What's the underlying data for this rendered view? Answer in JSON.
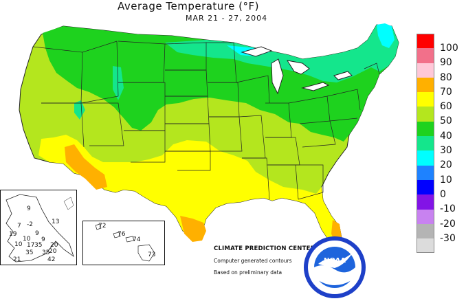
{
  "title": "Average Temperature (°F)",
  "subtitle": "MAR 21 - 27, 2004",
  "legend": [
    {
      "label": "100",
      "color": "#ff0000"
    },
    {
      "label": "90",
      "color": "#f2708a"
    },
    {
      "label": "80",
      "color": "#ffc8d8"
    },
    {
      "label": "70",
      "color": "#ffb000"
    },
    {
      "label": "60",
      "color": "#ffff00"
    },
    {
      "label": "50",
      "color": "#b4e61e"
    },
    {
      "label": "40",
      "color": "#1ed21e"
    },
    {
      "label": "30",
      "color": "#14e68c"
    },
    {
      "label": "20",
      "color": "#00ffff"
    },
    {
      "label": "10",
      "color": "#1e82ff"
    },
    {
      "label": "0",
      "color": "#0000ff"
    },
    {
      "label": "-10",
      "color": "#8214e6"
    },
    {
      "label": "-20",
      "color": "#c882f0"
    },
    {
      "label": "-30",
      "color": "#b4b4b4"
    },
    {
      "label": "",
      "color": "#dcdcdc"
    }
  ],
  "credits": {
    "center": "CLIMATE PREDICTION CENTER, NOAA",
    "line2": "Computer generated contours",
    "line3": "Based on preliminary data"
  },
  "logo_text": "NOAA",
  "alaska_values": [
    "9",
    "13",
    "7",
    "-2",
    "9",
    "19",
    "10",
    "9",
    "10",
    "17",
    "35",
    "20",
    "35",
    "35",
    "20",
    "21",
    "42"
  ],
  "hawaii_values": [
    "72",
    "76",
    "74",
    "73"
  ]
}
